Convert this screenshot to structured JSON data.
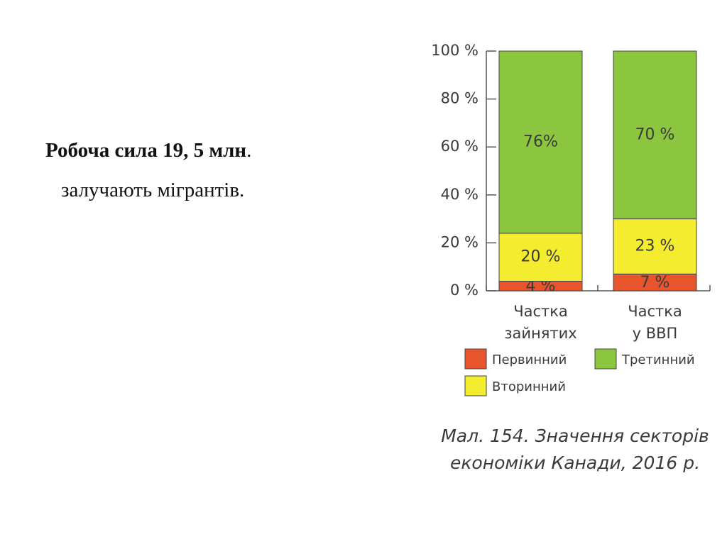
{
  "slide_text": {
    "line1": "Робоча сила 19, 5 млн",
    "line1_end": ".",
    "line2": "залучають мігрантів."
  },
  "chart_data": {
    "type": "stacked_bar",
    "categories": [
      "Частка\nзайнятих",
      "Частка\nу ВВП"
    ],
    "series": [
      {
        "name": "Первинний",
        "color": "#e8552c",
        "values": [
          4,
          7
        ],
        "value_labels": [
          "4 %",
          "7 %"
        ]
      },
      {
        "name": "Вторинний",
        "color": "#f4ec2e",
        "values": [
          20,
          23
        ],
        "value_labels": [
          "20 %",
          "23 %"
        ]
      },
      {
        "name": "Третинний",
        "color": "#8cc63f",
        "values": [
          76,
          70
        ],
        "value_labels": [
          "76%",
          "70 %"
        ]
      }
    ],
    "ylim": [
      0,
      100
    ],
    "yticks": [
      {
        "value": 0,
        "label": "0 %"
      },
      {
        "value": 20,
        "label": "20 %"
      },
      {
        "value": 40,
        "label": "40 %"
      },
      {
        "value": 60,
        "label": "60 %"
      },
      {
        "value": 80,
        "label": "80 %"
      },
      {
        "value": 100,
        "label": "100 %"
      }
    ],
    "caption": "Мал. 154. Значення секторів\nекономіки Канади, 2016 р."
  }
}
